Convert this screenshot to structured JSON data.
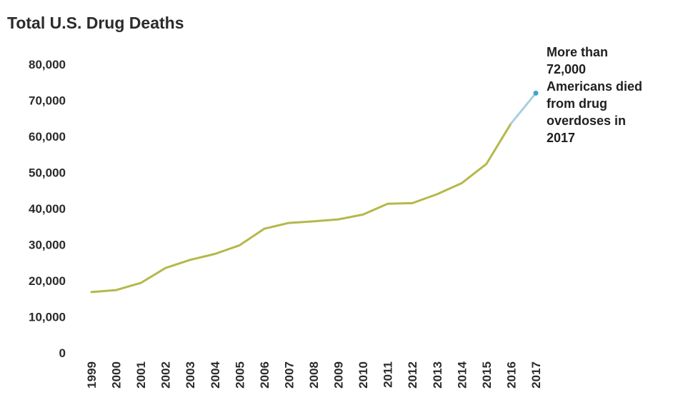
{
  "chart_data": {
    "type": "line",
    "title": "Total U.S. Drug Deaths",
    "xlabel": "",
    "ylabel": "",
    "x": [
      "1999",
      "2000",
      "2001",
      "2002",
      "2003",
      "2004",
      "2005",
      "2006",
      "2007",
      "2008",
      "2009",
      "2010",
      "2011",
      "2012",
      "2013",
      "2014",
      "2015",
      "2016",
      "2017"
    ],
    "y_ticks": [
      "0",
      "10,000",
      "20,000",
      "30,000",
      "40,000",
      "50,000",
      "60,000",
      "70,000",
      "80,000"
    ],
    "ylim": [
      0,
      80000
    ],
    "grid": false,
    "series": [
      {
        "values": [
          16849,
          17415,
          19394,
          23518,
          25785,
          27424,
          29813,
          34425,
          36010,
          36450,
          37004,
          38329,
          41340,
          41502,
          43982,
          47055,
          52404,
          63632,
          72000
        ],
        "color": "#b5b84a",
        "last_segment_color": "#a9cfe0",
        "end_marker_color": "#3ba8c8"
      }
    ],
    "annotation": {
      "lines": [
        "More than",
        "72,000",
        "Americans died",
        "from drug",
        "overdoses in",
        "2017"
      ]
    }
  }
}
